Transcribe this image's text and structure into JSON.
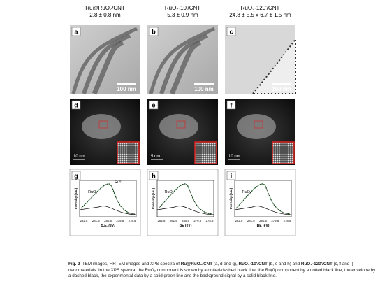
{
  "columns": [
    {
      "title": "Ru@RuO₂/CNT",
      "size": "2.8 ± 0.8 nm",
      "panels": [
        {
          "letter": "a",
          "scale": "100 nm"
        },
        {
          "letter": "d",
          "scale": "10 nm"
        },
        {
          "letter": "g",
          "ylabel": "Intensity (a.u.)",
          "xlabel": "B.E. (eV)",
          "xticks": [
            282.5,
            281.5,
            280.5,
            279.5,
            278.5
          ],
          "labels": [
            "RuO₂",
            "Ru⁰"
          ]
        }
      ]
    },
    {
      "title": "RuO₂-10'/CNT",
      "size": "5.3 ± 0.9 nm",
      "panels": [
        {
          "letter": "b",
          "scale": "100 nm"
        },
        {
          "letter": "e",
          "scale": "5 nm"
        },
        {
          "letter": "h",
          "ylabel": "Intensity (a.u.)",
          "xlabel": "BE (eV)",
          "xticks": [
            282.5,
            281.5,
            280.5,
            279.5,
            278.5
          ],
          "labels": [
            "RuO₂"
          ]
        }
      ]
    },
    {
      "title": "RuO₂-120'/CNT",
      "size": "24.8 ± 5.5 x 6.7 ± 1.5 nm",
      "panels": [
        {
          "letter": "c",
          "scale": "100 nm"
        },
        {
          "letter": "f",
          "scale": "10 nm"
        },
        {
          "letter": "i",
          "ylabel": "Intensity (a.u.)",
          "xlabel": "BE (eV)",
          "xticks": [
            282.5,
            281.5,
            280.5,
            279.5,
            278.5
          ],
          "labels": [
            "RuO₂"
          ]
        }
      ]
    }
  ],
  "caption": [
    {
      "text": "Fig. 2",
      "bold": true
    },
    {
      "text": "  TEM images, HRTEM images and XPS spectra of ",
      "bold": false
    },
    {
      "text": "Ru@RuO₂/CNT",
      "bold": true
    },
    {
      "text": " (a, d and g), ",
      "bold": false
    },
    {
      "text": "RuO₂-10'/CNT",
      "bold": true
    },
    {
      "text": " (b, e and h) and ",
      "bold": false
    },
    {
      "text": "RuO₂-120'/CNT",
      "bold": true
    },
    {
      "text": " (c, f and i) nanomaterials. In the XPS spectra, the RuO₂ component is shown by a dotted-dashed black line, the Ru(0) component by a dotted black line, the envelope by a dashed black, the experimental data by a solid green line and the background signal by a solid black line.",
      "bold": false
    }
  ]
}
